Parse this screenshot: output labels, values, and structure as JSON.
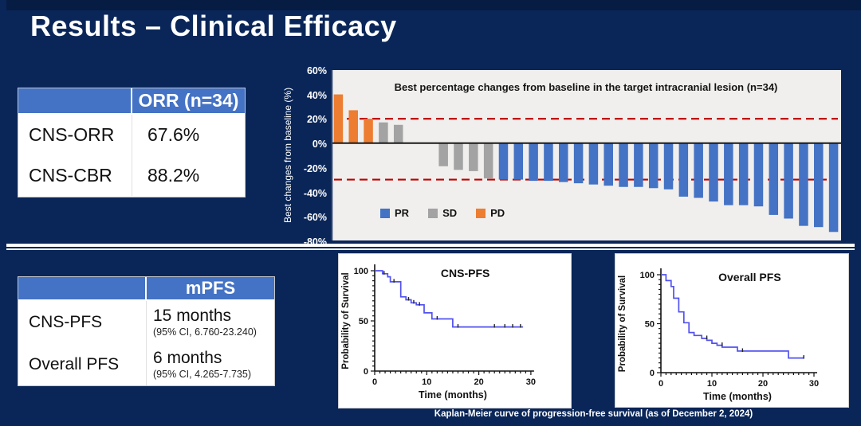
{
  "title": "Results – Clinical Efficacy",
  "colors": {
    "background": "#0a2658",
    "table_header_blue": "#4472c4",
    "pr_blue": "#4472c4",
    "sd_gray": "#a3a3a3",
    "pd_orange": "#ed7d31",
    "reference_red": "#c00000",
    "km_line_blue": "#5151f0"
  },
  "tables": {
    "orr": {
      "header": "ORR (n=34)",
      "rows": [
        {
          "label": "CNS-ORR",
          "value": "67.6%"
        },
        {
          "label": "CNS-CBR",
          "value": "88.2%"
        }
      ]
    },
    "mpfs": {
      "header": "mPFS",
      "rows": [
        {
          "label": "CNS-PFS",
          "value": "15 months",
          "ci": "(95% CI, 6.760-23.240)"
        },
        {
          "label": "Overall PFS",
          "value": "6 months",
          "ci": "(95% CI, 4.265-7.735)"
        }
      ]
    }
  },
  "caption": "Kaplan-Meier curve of progression-free survival (as of December 2, 2024)",
  "chart_data": [
    {
      "type": "bar",
      "name": "waterfall",
      "title": "Best percentage changes from baseline in the target intracranial lesion (n=34)",
      "ylabel": "Best changes from baseline (%)",
      "ylim": [
        -80,
        60
      ],
      "y_ticks": [
        "60%",
        "40%",
        "20%",
        "0%",
        "-20%",
        "-40%",
        "-60%",
        "-80%"
      ],
      "reference_lines": [
        20,
        -30
      ],
      "legend": [
        {
          "label": "PR",
          "color": "#4472c4"
        },
        {
          "label": "SD",
          "color": "#a3a3a3"
        },
        {
          "label": "PD",
          "color": "#ed7d31"
        }
      ],
      "bars": [
        {
          "value": 40,
          "group": "PD"
        },
        {
          "value": 27,
          "group": "PD"
        },
        {
          "value": 20,
          "group": "PD"
        },
        {
          "value": 17,
          "group": "SD"
        },
        {
          "value": 15,
          "group": "SD"
        },
        {
          "value": 0,
          "group": "SD"
        },
        {
          "value": 0,
          "group": "SD"
        },
        {
          "value": -19,
          "group": "SD"
        },
        {
          "value": -22,
          "group": "SD"
        },
        {
          "value": -23,
          "group": "SD"
        },
        {
          "value": -29,
          "group": "SD"
        },
        {
          "value": -30,
          "group": "PR"
        },
        {
          "value": -30,
          "group": "PR"
        },
        {
          "value": -31,
          "group": "PR"
        },
        {
          "value": -31,
          "group": "PR"
        },
        {
          "value": -32,
          "group": "PR"
        },
        {
          "value": -33,
          "group": "PR"
        },
        {
          "value": -34,
          "group": "PR"
        },
        {
          "value": -35,
          "group": "PR"
        },
        {
          "value": -36,
          "group": "PR"
        },
        {
          "value": -36,
          "group": "PR"
        },
        {
          "value": -37,
          "group": "PR"
        },
        {
          "value": -38,
          "group": "PR"
        },
        {
          "value": -44,
          "group": "PR"
        },
        {
          "value": -45,
          "group": "PR"
        },
        {
          "value": -48,
          "group": "PR"
        },
        {
          "value": -51,
          "group": "PR"
        },
        {
          "value": -51,
          "group": "PR"
        },
        {
          "value": -52,
          "group": "PR"
        },
        {
          "value": -59,
          "group": "PR"
        },
        {
          "value": -62,
          "group": "PR"
        },
        {
          "value": -68,
          "group": "PR"
        },
        {
          "value": -69,
          "group": "PR"
        },
        {
          "value": -73,
          "group": "PR"
        }
      ]
    },
    {
      "type": "line",
      "name": "cns_pfs_km",
      "title": "CNS-PFS",
      "xlabel": "Time (months)",
      "ylabel": "Probability of Survival",
      "xlim": [
        0,
        30
      ],
      "ylim": [
        0,
        100
      ],
      "x_ticks": [
        0,
        10,
        20,
        30
      ],
      "y_ticks": [
        0,
        50,
        100
      ],
      "steps": [
        [
          0,
          100
        ],
        [
          1.5,
          100
        ],
        [
          1.5,
          97
        ],
        [
          2.5,
          97
        ],
        [
          2.5,
          94
        ],
        [
          3,
          94
        ],
        [
          3,
          89
        ],
        [
          5,
          89
        ],
        [
          5,
          74
        ],
        [
          6,
          74
        ],
        [
          6,
          71
        ],
        [
          7,
          71
        ],
        [
          7,
          68
        ],
        [
          8,
          68
        ],
        [
          8,
          66
        ],
        [
          9.5,
          66
        ],
        [
          9.5,
          58
        ],
        [
          11,
          58
        ],
        [
          11,
          52
        ],
        [
          15,
          52
        ],
        [
          15,
          44
        ],
        [
          28.5,
          44
        ]
      ],
      "censors": [
        [
          1.8,
          97
        ],
        [
          3.7,
          89
        ],
        [
          6.5,
          71
        ],
        [
          7.5,
          68
        ],
        [
          8.6,
          66
        ],
        [
          12,
          52
        ],
        [
          16,
          44
        ],
        [
          23,
          44
        ],
        [
          25,
          44
        ],
        [
          26.5,
          44
        ],
        [
          28,
          44
        ]
      ]
    },
    {
      "type": "line",
      "name": "overall_pfs_km",
      "title": "Overall PFS",
      "xlabel": "Time (months)",
      "ylabel": "Probability of Survival",
      "xlim": [
        0,
        30
      ],
      "ylim": [
        0,
        100
      ],
      "x_ticks": [
        0,
        10,
        20,
        30
      ],
      "y_ticks": [
        0,
        50,
        100
      ],
      "steps": [
        [
          0,
          100
        ],
        [
          1,
          100
        ],
        [
          1,
          94
        ],
        [
          2,
          94
        ],
        [
          2,
          88
        ],
        [
          2.5,
          88
        ],
        [
          2.5,
          76
        ],
        [
          3.5,
          76
        ],
        [
          3.5,
          62
        ],
        [
          4.5,
          62
        ],
        [
          4.5,
          51
        ],
        [
          5.5,
          51
        ],
        [
          5.5,
          41
        ],
        [
          6.5,
          41
        ],
        [
          6.5,
          38
        ],
        [
          8,
          38
        ],
        [
          8,
          35
        ],
        [
          9,
          35
        ],
        [
          9,
          33
        ],
        [
          10,
          33
        ],
        [
          10,
          30
        ],
        [
          11,
          30
        ],
        [
          11,
          28
        ],
        [
          12,
          28
        ],
        [
          12,
          26
        ],
        [
          15,
          26
        ],
        [
          15,
          22
        ],
        [
          25,
          22
        ],
        [
          25,
          15
        ],
        [
          28,
          15
        ]
      ],
      "censors": [
        [
          9,
          35
        ],
        [
          12,
          28
        ],
        [
          16,
          22
        ],
        [
          28,
          15
        ]
      ]
    }
  ]
}
